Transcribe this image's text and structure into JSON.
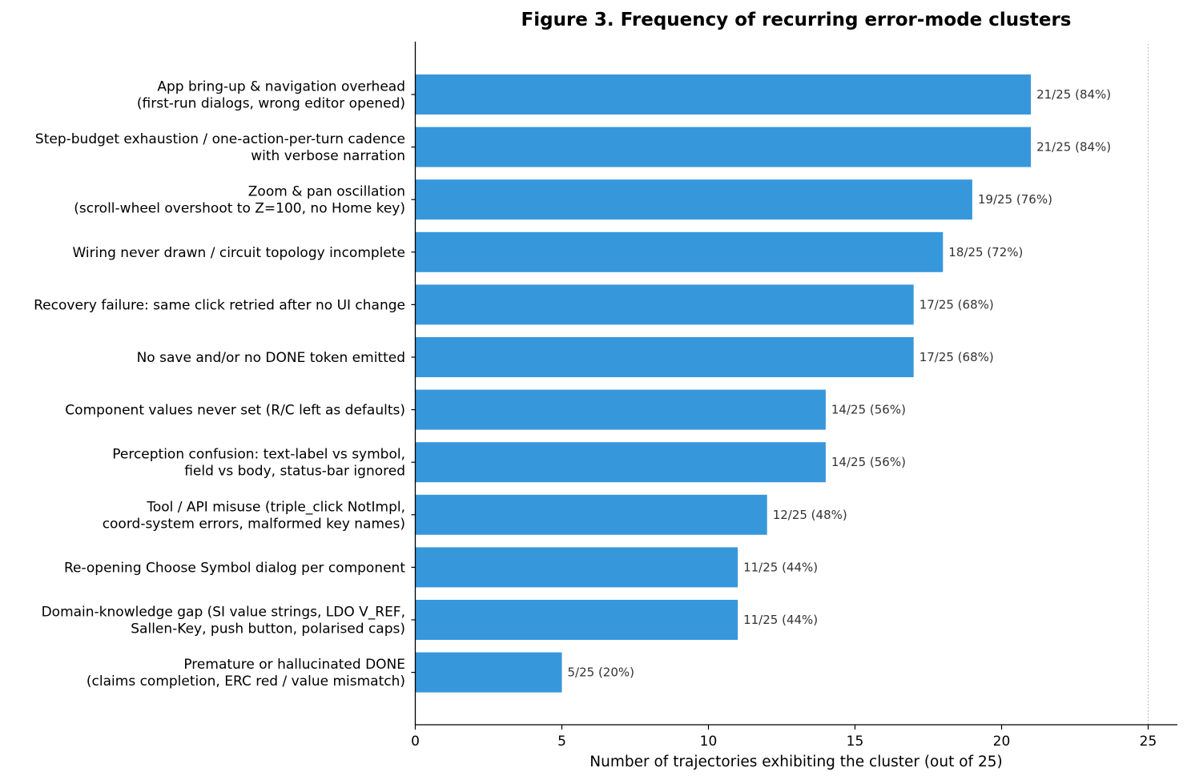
{
  "chart_data": {
    "type": "bar",
    "orientation": "horizontal",
    "title": "Figure 3. Frequency of recurring error-mode clusters",
    "xlabel": "Number of trajectories exhibiting the cluster (out of 25)",
    "ylabel": "",
    "xlim": [
      0,
      26
    ],
    "xticks": [
      "0",
      "5",
      "10",
      "15",
      "20",
      "25"
    ],
    "reference_line": 25,
    "bar_color": "#3797db",
    "grid": false,
    "categories": [
      [
        "App bring-up & navigation overhead",
        "(first-run dialogs, wrong editor opened)"
      ],
      [
        "Step-budget exhaustion / one-action-per-turn cadence",
        "with verbose narration"
      ],
      [
        "Zoom & pan oscillation",
        "(scroll-wheel overshoot to Z=100, no Home key)"
      ],
      [
        "Wiring never drawn / circuit topology incomplete"
      ],
      [
        "Recovery failure: same click retried after no UI change"
      ],
      [
        "No save and/or no DONE token emitted"
      ],
      [
        "Component values never set (R/C left as defaults)"
      ],
      [
        "Perception confusion: text-label vs symbol,",
        "field vs body, status-bar ignored"
      ],
      [
        "Tool / API misuse (triple_click NotImpl,",
        "coord-system errors, malformed key names)"
      ],
      [
        "Re-opening Choose Symbol dialog per component"
      ],
      [
        "Domain-knowledge gap (SI value strings, LDO V_REF,",
        "Sallen-Key, push button, polarised caps)"
      ],
      [
        "Premature or hallucinated DONE",
        "(claims completion, ERC red / value mismatch)"
      ]
    ],
    "values": [
      21,
      21,
      19,
      18,
      17,
      17,
      14,
      14,
      12,
      11,
      11,
      5
    ],
    "value_labels": [
      "21/25  (84%)",
      "21/25  (84%)",
      "19/25  (76%)",
      "18/25  (72%)",
      "17/25  (68%)",
      "17/25  (68%)",
      "14/25  (56%)",
      "14/25  (56%)",
      "12/25  (48%)",
      "11/25  (44%)",
      "11/25  (44%)",
      "5/25  (20%)"
    ]
  }
}
